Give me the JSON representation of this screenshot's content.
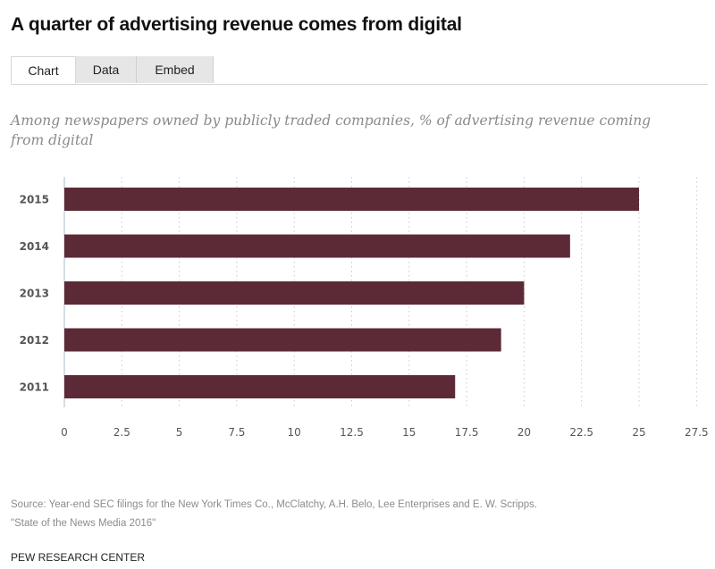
{
  "title": "A quarter of advertising revenue comes from digital",
  "tabs": [
    {
      "label": "Chart",
      "active": true
    },
    {
      "label": "Data",
      "active": false
    },
    {
      "label": "Embed",
      "active": false
    }
  ],
  "subtitle": "Among newspapers owned by publicly traded companies, % of advertising revenue coming from digital",
  "colors": {
    "bar": "#5c2a36",
    "grid": "#c8c8c8",
    "axis": "#c9d3de"
  },
  "chart_data": {
    "type": "bar",
    "orientation": "horizontal",
    "title": "Among newspapers owned by publicly traded companies, % of advertising revenue coming from digital",
    "categories": [
      "2015",
      "2014",
      "2013",
      "2012",
      "2011"
    ],
    "values": [
      25,
      22,
      20,
      19,
      17
    ],
    "xlabel": "",
    "ylabel": "",
    "xlim": [
      0,
      27.5
    ],
    "xticks": [
      "0",
      "2.5",
      "5",
      "7.5",
      "10",
      "12.5",
      "15",
      "17.5",
      "20",
      "22.5",
      "25",
      "27.5"
    ],
    "grid": true,
    "legend": "none"
  },
  "source": {
    "line1": "Source: Year-end SEC filings for the New York Times Co., McClatchy, A.H. Belo, Lee Enterprises and E. W. Scripps.",
    "line2": "\"State of the News Media 2016\""
  },
  "brand": "PEW RESEARCH CENTER"
}
